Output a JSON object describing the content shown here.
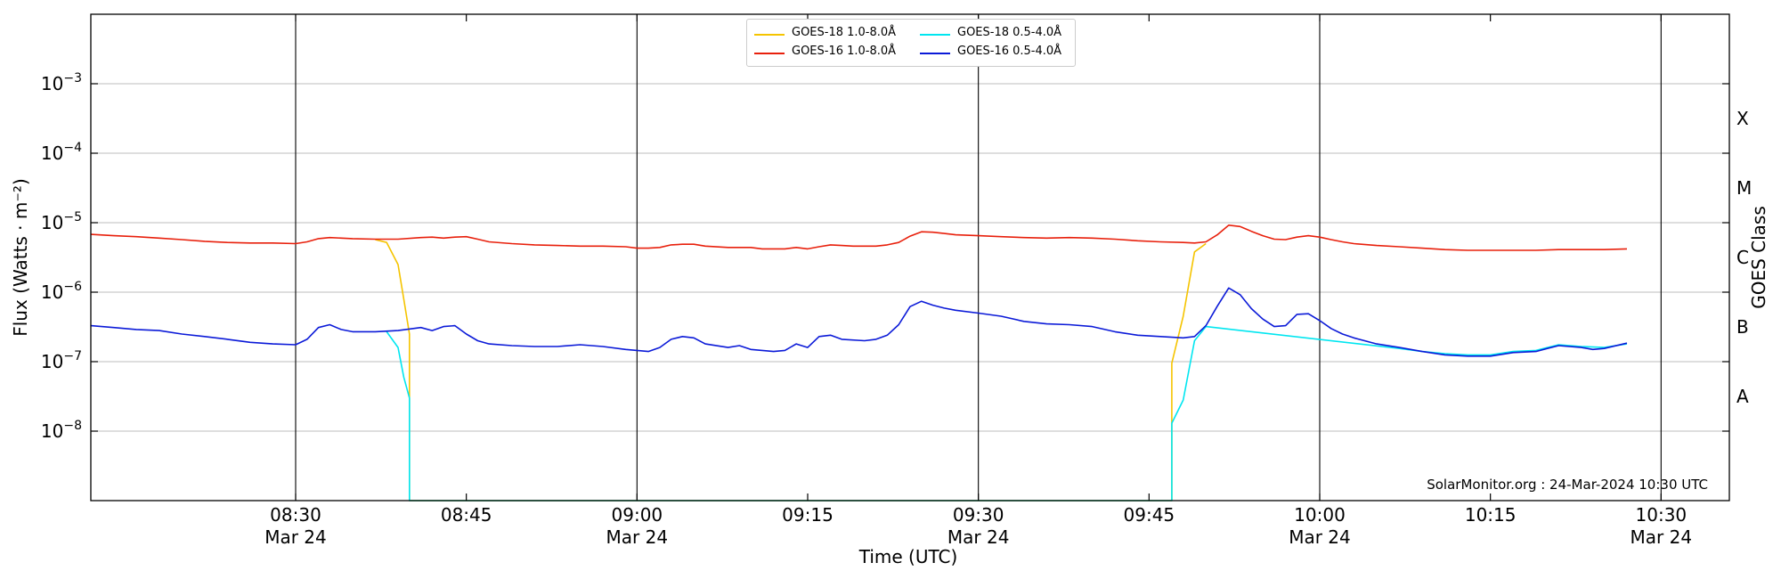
{
  "chart_data": {
    "type": "line",
    "xlabel": "Time (UTC)",
    "ylabel": "Flux (Watts · m⁻²)",
    "right_label": "GOES Class",
    "y_scale": "log",
    "ylim": [
      1e-09,
      0.01
    ],
    "xlim": [
      "2024-03-24 08:12",
      "2024-03-24 10:36"
    ],
    "grid": true,
    "legend_position": "top-center",
    "watermark": "SolarMonitor.org : 24-Mar-2024 10:30 UTC",
    "y_ticks": [
      {
        "mantissa": "10",
        "exponent": "−3"
      },
      {
        "mantissa": "10",
        "exponent": "−4"
      },
      {
        "mantissa": "10",
        "exponent": "−5"
      },
      {
        "mantissa": "10",
        "exponent": "−6"
      },
      {
        "mantissa": "10",
        "exponent": "−7"
      },
      {
        "mantissa": "10",
        "exponent": "−8"
      }
    ],
    "y_tick_values": [
      0.001,
      0.0001,
      1e-05,
      1e-06,
      1e-07,
      1e-08
    ],
    "x_ticks": [
      {
        "time": "08:30",
        "date": "Mar 24"
      },
      {
        "time": "08:45",
        "date": ""
      },
      {
        "time": "09:00",
        "date": "Mar 24"
      },
      {
        "time": "09:15",
        "date": ""
      },
      {
        "time": "09:30",
        "date": "Mar 24"
      },
      {
        "time": "09:45",
        "date": ""
      },
      {
        "time": "10:00",
        "date": "Mar 24"
      },
      {
        "time": "10:15",
        "date": ""
      },
      {
        "time": "10:30",
        "date": "Mar 24"
      }
    ],
    "x_tick_minutes": [
      510,
      525,
      540,
      555,
      570,
      585,
      600,
      615,
      630
    ],
    "vlines_minutes": [
      510,
      540,
      570,
      600,
      630
    ],
    "goes_classes": [
      {
        "label": "X",
        "flux": 0.0001
      },
      {
        "label": "M",
        "flux": 1e-05
      },
      {
        "label": "C",
        "flux": 1e-06
      },
      {
        "label": "B",
        "flux": 1e-07
      },
      {
        "label": "A",
        "flux": 1e-08
      }
    ],
    "series": [
      {
        "name": "GOES-18 1.0-8.0Å",
        "color": "#f5c400",
        "points": [
          [
            "08:37",
            5.7e-06
          ],
          [
            "08:38",
            5.2e-06
          ],
          [
            "08:39",
            2.5e-06
          ],
          [
            "08:39.5",
            8e-07
          ],
          [
            "08:40",
            2.5e-07
          ],
          [
            "08:40",
            1e-09
          ],
          [
            "09:47",
            1e-09
          ],
          [
            "09:47",
            9.5e-08
          ],
          [
            "09:48",
            4.5e-07
          ],
          [
            "09:49",
            3.8e-06
          ],
          [
            "09:50",
            5e-06
          ]
        ]
      },
      {
        "name": "GOES-16 1.0-8.0Å",
        "color": "#e8200c",
        "points": [
          [
            "08:12",
            6.8e-06
          ],
          [
            "08:14",
            6.5e-06
          ],
          [
            "08:16",
            6.3e-06
          ],
          [
            "08:18",
            6e-06
          ],
          [
            "08:20",
            5.7e-06
          ],
          [
            "08:22",
            5.4e-06
          ],
          [
            "08:24",
            5.2e-06
          ],
          [
            "08:26",
            5.1e-06
          ],
          [
            "08:28",
            5.1e-06
          ],
          [
            "08:30",
            5e-06
          ],
          [
            "08:31",
            5.3e-06
          ],
          [
            "08:32",
            5.9e-06
          ],
          [
            "08:33",
            6.1e-06
          ],
          [
            "08:34",
            6e-06
          ],
          [
            "08:35",
            5.9e-06
          ],
          [
            "08:37",
            5.8e-06
          ],
          [
            "08:39",
            5.8e-06
          ],
          [
            "08:41",
            6.1e-06
          ],
          [
            "08:42",
            6.2e-06
          ],
          [
            "08:43",
            6e-06
          ],
          [
            "08:44",
            6.2e-06
          ],
          [
            "08:45",
            6.3e-06
          ],
          [
            "08:46",
            5.8e-06
          ],
          [
            "08:47",
            5.3e-06
          ],
          [
            "08:49",
            5e-06
          ],
          [
            "08:51",
            4.8e-06
          ],
          [
            "08:53",
            4.7e-06
          ],
          [
            "08:55",
            4.6e-06
          ],
          [
            "08:57",
            4.6e-06
          ],
          [
            "08:59",
            4.5e-06
          ],
          [
            "09:00",
            4.3e-06
          ],
          [
            "09:01",
            4.3e-06
          ],
          [
            "09:02",
            4.4e-06
          ],
          [
            "09:03",
            4.8e-06
          ],
          [
            "09:04",
            4.9e-06
          ],
          [
            "09:05",
            4.9e-06
          ],
          [
            "09:06",
            4.6e-06
          ],
          [
            "09:08",
            4.4e-06
          ],
          [
            "09:10",
            4.4e-06
          ],
          [
            "09:11",
            4.2e-06
          ],
          [
            "09:13",
            4.2e-06
          ],
          [
            "09:14",
            4.4e-06
          ],
          [
            "09:15",
            4.2e-06
          ],
          [
            "09:16",
            4.5e-06
          ],
          [
            "09:17",
            4.8e-06
          ],
          [
            "09:18",
            4.7e-06
          ],
          [
            "09:19",
            4.6e-06
          ],
          [
            "09:21",
            4.6e-06
          ],
          [
            "09:22",
            4.8e-06
          ],
          [
            "09:23",
            5.2e-06
          ],
          [
            "09:24",
            6.4e-06
          ],
          [
            "09:25",
            7.4e-06
          ],
          [
            "09:26",
            7.3e-06
          ],
          [
            "09:27",
            7e-06
          ],
          [
            "09:28",
            6.7e-06
          ],
          [
            "09:30",
            6.5e-06
          ],
          [
            "09:32",
            6.3e-06
          ],
          [
            "09:34",
            6.1e-06
          ],
          [
            "09:36",
            6e-06
          ],
          [
            "09:38",
            6.1e-06
          ],
          [
            "09:40",
            6e-06
          ],
          [
            "09:42",
            5.8e-06
          ],
          [
            "09:44",
            5.5e-06
          ],
          [
            "09:46",
            5.3e-06
          ],
          [
            "09:48",
            5.2e-06
          ],
          [
            "09:49",
            5.1e-06
          ],
          [
            "09:50",
            5.3e-06
          ],
          [
            "09:51",
            6.7e-06
          ],
          [
            "09:52",
            9.2e-06
          ],
          [
            "09:53",
            8.8e-06
          ],
          [
            "09:54",
            7.5e-06
          ],
          [
            "09:55",
            6.5e-06
          ],
          [
            "09:56",
            5.8e-06
          ],
          [
            "09:57",
            5.7e-06
          ],
          [
            "09:58",
            6.2e-06
          ],
          [
            "09:59",
            6.5e-06
          ],
          [
            "10:00",
            6.2e-06
          ],
          [
            "10:01",
            5.7e-06
          ],
          [
            "10:02",
            5.3e-06
          ],
          [
            "10:03",
            5e-06
          ],
          [
            "10:05",
            4.7e-06
          ],
          [
            "10:07",
            4.5e-06
          ],
          [
            "10:09",
            4.3e-06
          ],
          [
            "10:11",
            4.1e-06
          ],
          [
            "10:13",
            4e-06
          ],
          [
            "10:15",
            4e-06
          ],
          [
            "10:17",
            4e-06
          ],
          [
            "10:19",
            4e-06
          ],
          [
            "10:21",
            4.1e-06
          ],
          [
            "10:23",
            4.1e-06
          ],
          [
            "10:25",
            4.1e-06
          ],
          [
            "10:27",
            4.2e-06
          ]
        ]
      },
      {
        "name": "GOES-18 0.5-4.0Å",
        "color": "#00e6f0",
        "points": [
          [
            "08:38",
            2.7e-07
          ],
          [
            "08:39",
            1.6e-07
          ],
          [
            "08:39.5",
            6e-08
          ],
          [
            "08:40",
            3e-08
          ],
          [
            "08:40",
            1e-09
          ],
          [
            "09:47",
            1e-09
          ],
          [
            "09:47",
            1.3e-08
          ],
          [
            "09:48",
            2.8e-08
          ],
          [
            "09:49",
            2e-07
          ],
          [
            "09:50",
            3.2e-07
          ],
          [
            "10:07",
            1.55e-07
          ],
          [
            "10:09",
            1.4e-07
          ],
          [
            "10:11",
            1.3e-07
          ],
          [
            "10:13",
            1.25e-07
          ],
          [
            "10:15",
            1.25e-07
          ],
          [
            "10:17",
            1.4e-07
          ],
          [
            "10:19",
            1.45e-07
          ],
          [
            "10:20",
            1.6e-07
          ],
          [
            "10:21",
            1.75e-07
          ],
          [
            "10:23",
            1.65e-07
          ],
          [
            "10:25",
            1.6e-07
          ],
          [
            "10:27",
            1.8e-07
          ]
        ]
      },
      {
        "name": "GOES-16 0.5-4.0Å",
        "color": "#0b1ad8",
        "points": [
          [
            "08:12",
            3.3e-07
          ],
          [
            "08:14",
            3.1e-07
          ],
          [
            "08:16",
            2.9e-07
          ],
          [
            "08:18",
            2.8e-07
          ],
          [
            "08:20",
            2.5e-07
          ],
          [
            "08:22",
            2.3e-07
          ],
          [
            "08:24",
            2.1e-07
          ],
          [
            "08:26",
            1.9e-07
          ],
          [
            "08:28",
            1.8e-07
          ],
          [
            "08:30",
            1.75e-07
          ],
          [
            "08:31",
            2.1e-07
          ],
          [
            "08:32",
            3.1e-07
          ],
          [
            "08:33",
            3.4e-07
          ],
          [
            "08:34",
            2.9e-07
          ],
          [
            "08:35",
            2.7e-07
          ],
          [
            "08:37",
            2.7e-07
          ],
          [
            "08:39",
            2.8e-07
          ],
          [
            "08:41",
            3.1e-07
          ],
          [
            "08:42",
            2.8e-07
          ],
          [
            "08:43",
            3.2e-07
          ],
          [
            "08:44",
            3.3e-07
          ],
          [
            "08:45",
            2.5e-07
          ],
          [
            "08:46",
            2e-07
          ],
          [
            "08:47",
            1.8e-07
          ],
          [
            "08:49",
            1.7e-07
          ],
          [
            "08:51",
            1.65e-07
          ],
          [
            "08:53",
            1.65e-07
          ],
          [
            "08:55",
            1.75e-07
          ],
          [
            "08:57",
            1.65e-07
          ],
          [
            "08:59",
            1.5e-07
          ],
          [
            "09:00",
            1.45e-07
          ],
          [
            "09:01",
            1.4e-07
          ],
          [
            "09:02",
            1.6e-07
          ],
          [
            "09:03",
            2.1e-07
          ],
          [
            "09:04",
            2.3e-07
          ],
          [
            "09:05",
            2.2e-07
          ],
          [
            "09:06",
            1.8e-07
          ],
          [
            "09:08",
            1.6e-07
          ],
          [
            "09:09",
            1.7e-07
          ],
          [
            "09:10",
            1.5e-07
          ],
          [
            "09:12",
            1.4e-07
          ],
          [
            "09:13",
            1.45e-07
          ],
          [
            "09:14",
            1.8e-07
          ],
          [
            "09:15",
            1.6e-07
          ],
          [
            "09:16",
            2.3e-07
          ],
          [
            "09:17",
            2.4e-07
          ],
          [
            "09:18",
            2.1e-07
          ],
          [
            "09:20",
            2e-07
          ],
          [
            "09:21",
            2.1e-07
          ],
          [
            "09:22",
            2.4e-07
          ],
          [
            "09:23",
            3.4e-07
          ],
          [
            "09:24",
            6.2e-07
          ],
          [
            "09:25",
            7.4e-07
          ],
          [
            "09:26",
            6.5e-07
          ],
          [
            "09:27",
            5.9e-07
          ],
          [
            "09:28",
            5.5e-07
          ],
          [
            "09:30",
            5e-07
          ],
          [
            "09:32",
            4.5e-07
          ],
          [
            "09:34",
            3.8e-07
          ],
          [
            "09:36",
            3.5e-07
          ],
          [
            "09:38",
            3.4e-07
          ],
          [
            "09:40",
            3.2e-07
          ],
          [
            "09:42",
            2.7e-07
          ],
          [
            "09:44",
            2.4e-07
          ],
          [
            "09:46",
            2.3e-07
          ],
          [
            "09:48",
            2.2e-07
          ],
          [
            "09:49",
            2.3e-07
          ],
          [
            "09:50",
            3.3e-07
          ],
          [
            "09:51",
            6.3e-07
          ],
          [
            "09:52",
            1.15e-06
          ],
          [
            "09:53",
            9.2e-07
          ],
          [
            "09:54",
            5.8e-07
          ],
          [
            "09:55",
            4.1e-07
          ],
          [
            "09:56",
            3.2e-07
          ],
          [
            "09:57",
            3.3e-07
          ],
          [
            "09:58",
            4.8e-07
          ],
          [
            "09:59",
            4.9e-07
          ],
          [
            "10:00",
            3.9e-07
          ],
          [
            "10:01",
            3e-07
          ],
          [
            "10:02",
            2.5e-07
          ],
          [
            "10:03",
            2.2e-07
          ],
          [
            "10:05",
            1.8e-07
          ],
          [
            "10:07",
            1.6e-07
          ],
          [
            "10:09",
            1.4e-07
          ],
          [
            "10:11",
            1.25e-07
          ],
          [
            "10:13",
            1.2e-07
          ],
          [
            "10:15",
            1.2e-07
          ],
          [
            "10:17",
            1.35e-07
          ],
          [
            "10:19",
            1.4e-07
          ],
          [
            "10:20",
            1.55e-07
          ],
          [
            "10:21",
            1.7e-07
          ],
          [
            "10:23",
            1.6e-07
          ],
          [
            "10:24",
            1.5e-07
          ],
          [
            "10:25",
            1.55e-07
          ],
          [
            "10:27",
            1.85e-07
          ]
        ]
      }
    ]
  }
}
